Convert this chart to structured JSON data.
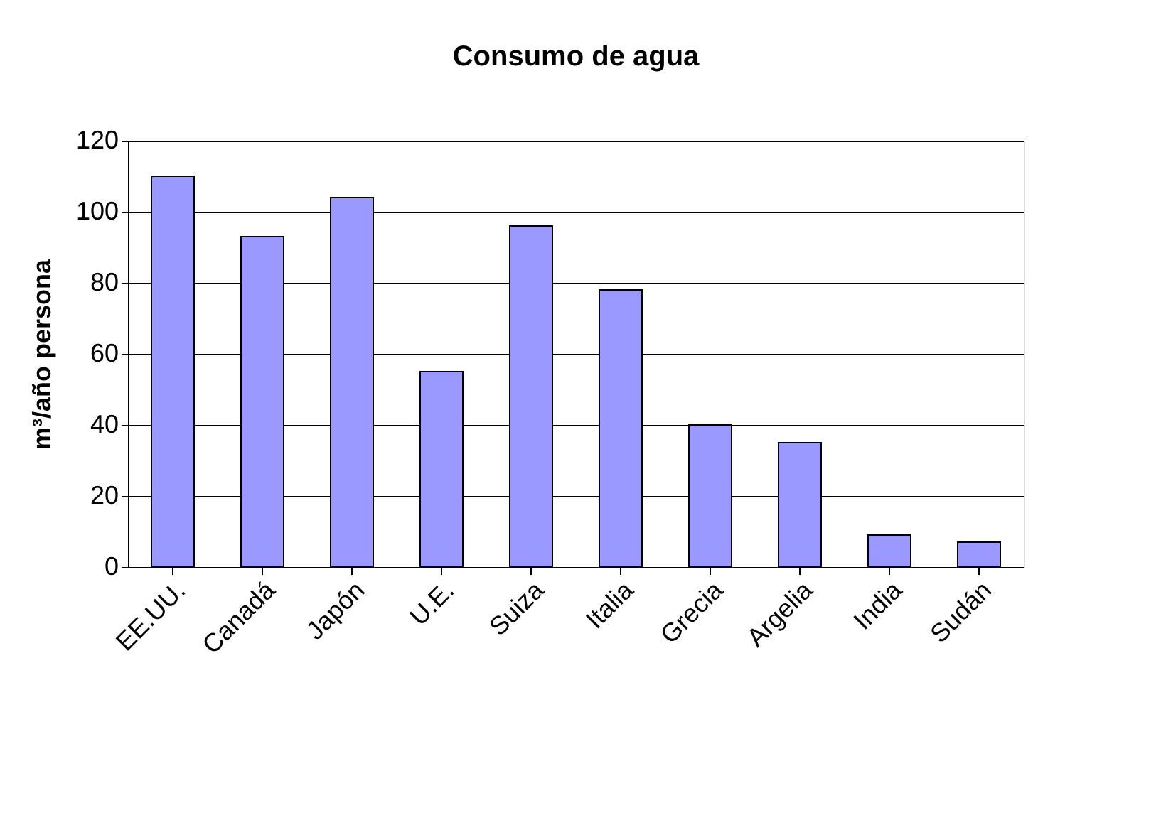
{
  "chart_data": {
    "type": "bar",
    "title": "Consumo de agua",
    "ylabel": "m³/año persona",
    "categories": [
      "EE.UU.",
      "Canadá",
      "Japón",
      "U.E.",
      "Suiza",
      "Italia",
      "Grecia",
      "Argelia",
      "India",
      "Sudán"
    ],
    "values": [
      110,
      93,
      104,
      55,
      96,
      78,
      40,
      35,
      9,
      7
    ],
    "color": "#9999ff",
    "ylim": [
      0,
      120
    ],
    "yticks": [
      0,
      20,
      40,
      60,
      80,
      100,
      120
    ],
    "grid": "y"
  }
}
